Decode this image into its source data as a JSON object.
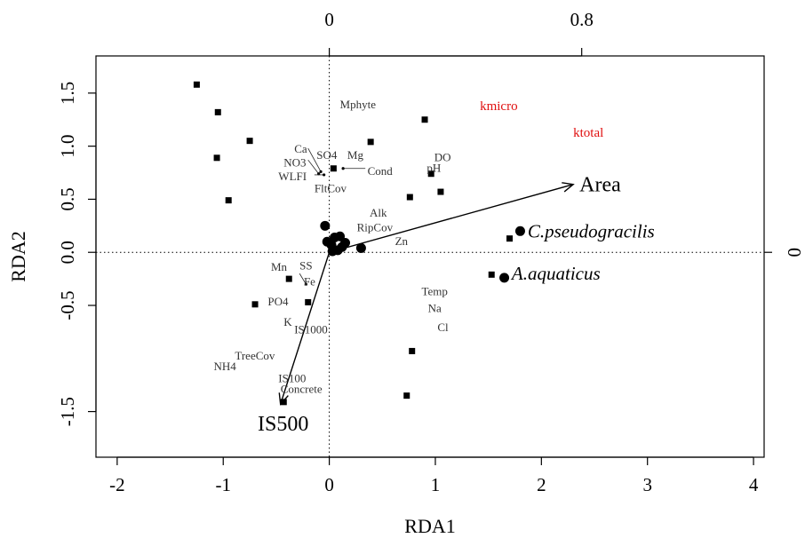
{
  "chart_data": {
    "type": "scatter",
    "title": "",
    "xlabel": "RDA1",
    "ylabel": "RDA2",
    "xlim": [
      -2.2,
      4.1
    ],
    "ylim": [
      -1.93,
      1.85
    ],
    "x_ticks": [
      "-2",
      "-1",
      "0",
      "1",
      "2",
      "3",
      "4"
    ],
    "y_ticks": [
      "-1.5",
      "-0.5",
      "0.0",
      "0.5",
      "1.0",
      "1.5"
    ],
    "y_tick_values": [
      -1.5,
      -0.5,
      0.0,
      0.5,
      1.0,
      1.5
    ],
    "secondary_axes": {
      "top_ticks": [
        "0",
        "0.8"
      ],
      "top_tick_values": [
        0,
        2.38
      ],
      "right_ticks": [
        "0"
      ],
      "right_tick_values": [
        0
      ]
    },
    "grid": false,
    "reference_lines": {
      "x": 0,
      "y": 0,
      "style": "dotted"
    },
    "site_points": [
      {
        "x": -1.25,
        "y": 1.58
      },
      {
        "x": -1.05,
        "y": 1.32
      },
      {
        "x": -0.75,
        "y": 1.05
      },
      {
        "x": -1.06,
        "y": 0.89
      },
      {
        "x": -0.95,
        "y": 0.49
      },
      {
        "x": 0.04,
        "y": 0.79
      },
      {
        "x": 0.39,
        "y": 1.04
      },
      {
        "x": 0.9,
        "y": 1.25
      },
      {
        "x": 0.96,
        "y": 0.74
      },
      {
        "x": 1.05,
        "y": 0.57
      },
      {
        "x": 0.76,
        "y": 0.52
      },
      {
        "x": 1.7,
        "y": 0.13
      },
      {
        "x": 1.53,
        "y": -0.21
      },
      {
        "x": -0.38,
        "y": -0.25
      },
      {
        "x": -0.7,
        "y": -0.49
      },
      {
        "x": -0.2,
        "y": -0.47
      },
      {
        "x": 0.78,
        "y": -0.93
      },
      {
        "x": 0.73,
        "y": -1.35
      },
      {
        "x": -0.43,
        "y": -1.41
      }
    ],
    "species_points": [
      {
        "x": -0.04,
        "y": 0.25
      },
      {
        "x": -0.02,
        "y": 0.1
      },
      {
        "x": 0.05,
        "y": 0.14
      },
      {
        "x": 0.1,
        "y": 0.15
      },
      {
        "x": 0.15,
        "y": 0.09
      },
      {
        "x": 0.02,
        "y": 0.07
      },
      {
        "x": 0.08,
        "y": 0.02
      },
      {
        "x": 0.12,
        "y": 0.05
      },
      {
        "x": 0.03,
        "y": 0.01
      },
      {
        "x": 0.3,
        "y": 0.04
      },
      {
        "x": 1.8,
        "y": 0.2
      },
      {
        "x": 1.65,
        "y": -0.24
      }
    ],
    "arrows": [
      {
        "label": "Area",
        "x": 2.3,
        "y": 0.64
      },
      {
        "label": "IS500",
        "x": -0.46,
        "y": -1.43
      }
    ],
    "species_labels": [
      {
        "text": "C.pseudogracilis",
        "x": 1.87,
        "y": 0.2
      },
      {
        "text": "A.aquaticus",
        "x": 1.72,
        "y": -0.2
      }
    ],
    "red_labels": [
      {
        "text": "kmicro",
        "x": 1.42,
        "y": 1.38
      },
      {
        "text": "ktotal",
        "x": 2.3,
        "y": 1.13
      }
    ],
    "variable_labels": [
      {
        "text": "Mphyte",
        "x": 0.1,
        "y": 1.4
      },
      {
        "text": "Ca",
        "x": -0.33,
        "y": 0.98
      },
      {
        "text": "SO4",
        "x": -0.12,
        "y": 0.92
      },
      {
        "text": "Mg",
        "x": 0.17,
        "y": 0.92
      },
      {
        "text": "NO3",
        "x": -0.43,
        "y": 0.85
      },
      {
        "text": "WLFI",
        "x": -0.48,
        "y": 0.72
      },
      {
        "text": "Cond",
        "x": 0.36,
        "y": 0.77
      },
      {
        "text": "FltCov",
        "x": -0.14,
        "y": 0.61
      },
      {
        "text": "DO",
        "x": 0.99,
        "y": 0.9
      },
      {
        "text": "pH",
        "x": 0.92,
        "y": 0.8
      },
      {
        "text": "Alk",
        "x": 0.38,
        "y": 0.38
      },
      {
        "text": "RipCov",
        "x": 0.26,
        "y": 0.24
      },
      {
        "text": "Zn",
        "x": 0.62,
        "y": 0.11
      },
      {
        "text": "Mn",
        "x": -0.55,
        "y": -0.13
      },
      {
        "text": "SS",
        "x": -0.28,
        "y": -0.12
      },
      {
        "text": "Fe",
        "x": -0.24,
        "y": -0.27
      },
      {
        "text": "PO4",
        "x": -0.58,
        "y": -0.46
      },
      {
        "text": "K",
        "x": -0.43,
        "y": -0.65
      },
      {
        "text": "IS1000",
        "x": -0.33,
        "y": -0.72
      },
      {
        "text": "Temp",
        "x": 0.87,
        "y": -0.36
      },
      {
        "text": "Na",
        "x": 0.93,
        "y": -0.52
      },
      {
        "text": "Cl",
        "x": 1.02,
        "y": -0.7
      },
      {
        "text": "TreeCov",
        "x": -0.89,
        "y": -0.97
      },
      {
        "text": "NH4",
        "x": -1.09,
        "y": -1.07
      },
      {
        "text": "IS100",
        "x": -0.48,
        "y": -1.18
      },
      {
        "text": "Concrete",
        "x": -0.46,
        "y": -1.28
      }
    ],
    "connectors": [
      {
        "x1": -0.2,
        "y1": 0.98,
        "x2": -0.08,
        "y2": 0.76
      },
      {
        "x1": -0.2,
        "y1": 0.87,
        "x2": -0.1,
        "y2": 0.74
      },
      {
        "x1": -0.14,
        "y1": 0.73,
        "x2": -0.05,
        "y2": 0.73
      },
      {
        "x1": 0.34,
        "y1": 0.79,
        "x2": 0.13,
        "y2": 0.79
      },
      {
        "x1": -0.28,
        "y1": -0.2,
        "x2": -0.22,
        "y2": -0.3
      }
    ]
  }
}
